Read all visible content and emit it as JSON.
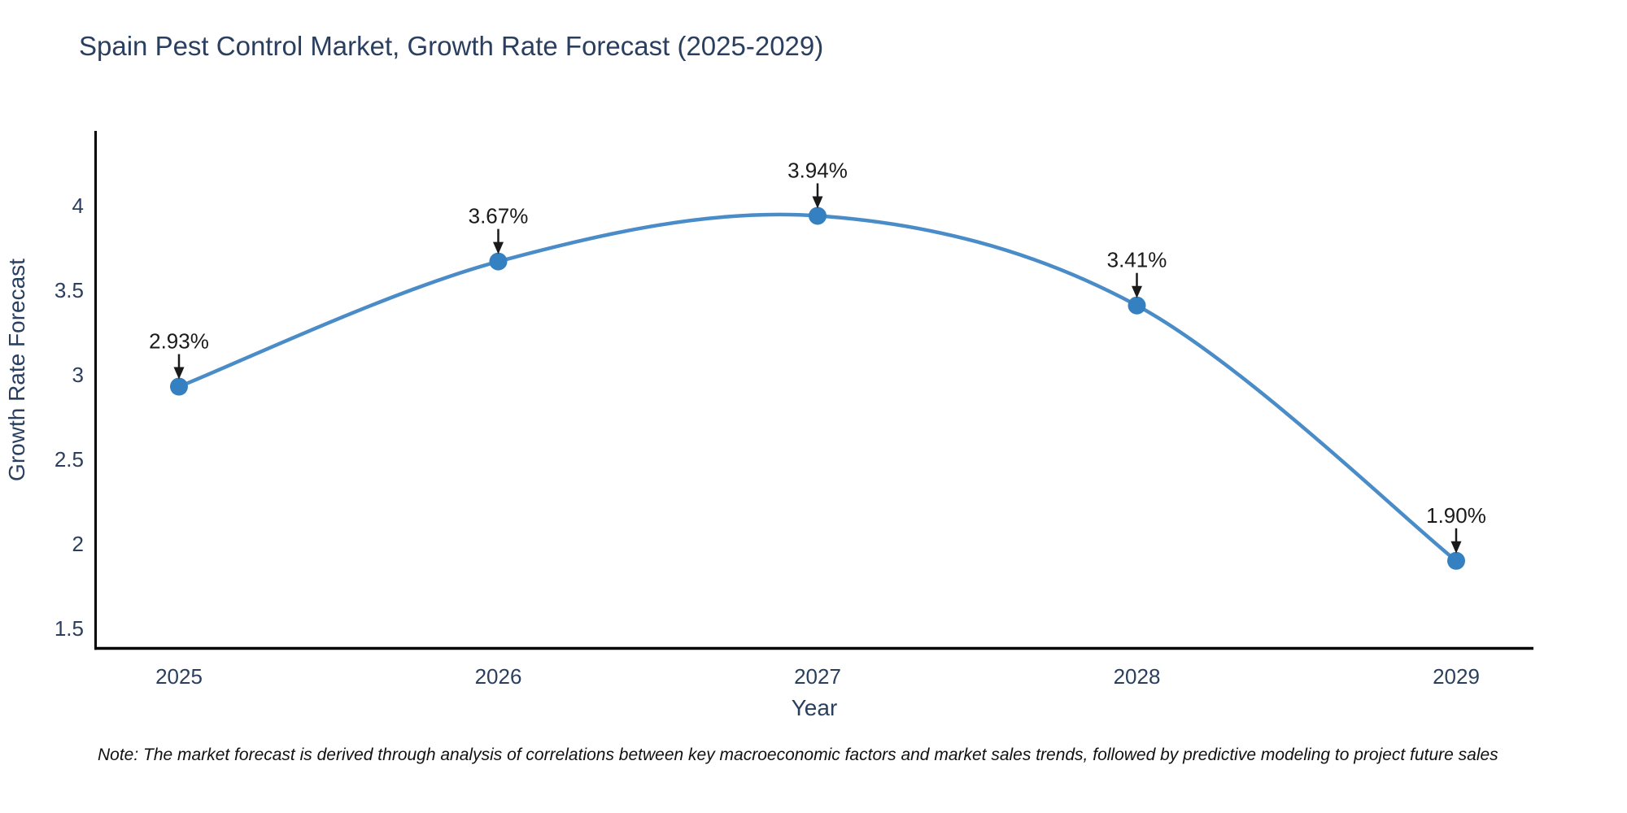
{
  "chart_data": {
    "type": "line",
    "title": "Spain Pest Control Market, Growth Rate Forecast (2025-2029)",
    "xlabel": "Year",
    "ylabel": "Growth Rate Forecast",
    "x": [
      2025,
      2026,
      2027,
      2028,
      2029
    ],
    "series": [
      {
        "name": "Growth Rate Forecast",
        "values": [
          2.93,
          3.67,
          3.94,
          3.41,
          1.9
        ]
      }
    ],
    "point_labels": [
      "2.93%",
      "3.67%",
      "3.94%",
      "3.41%",
      "1.90%"
    ],
    "yticks": [
      "1.5",
      "2",
      "2.5",
      "3",
      "3.5",
      "4"
    ],
    "ylim": [
      1.3,
      4.45
    ],
    "line_shape": "spline",
    "grid": false,
    "legend_position": "none",
    "note": "Note: The market forecast is derived through analysis of correlations between key macroeconomic factors and market sales trends, followed by predictive modeling to project future sales"
  },
  "colors": {
    "line": "#4a8cc7",
    "marker": "#3580c0",
    "axis_line": "#000000",
    "text": "#2a3f5f",
    "annotation": "#1a1a1a",
    "note_text": "#111111",
    "background": "#ffffff"
  }
}
